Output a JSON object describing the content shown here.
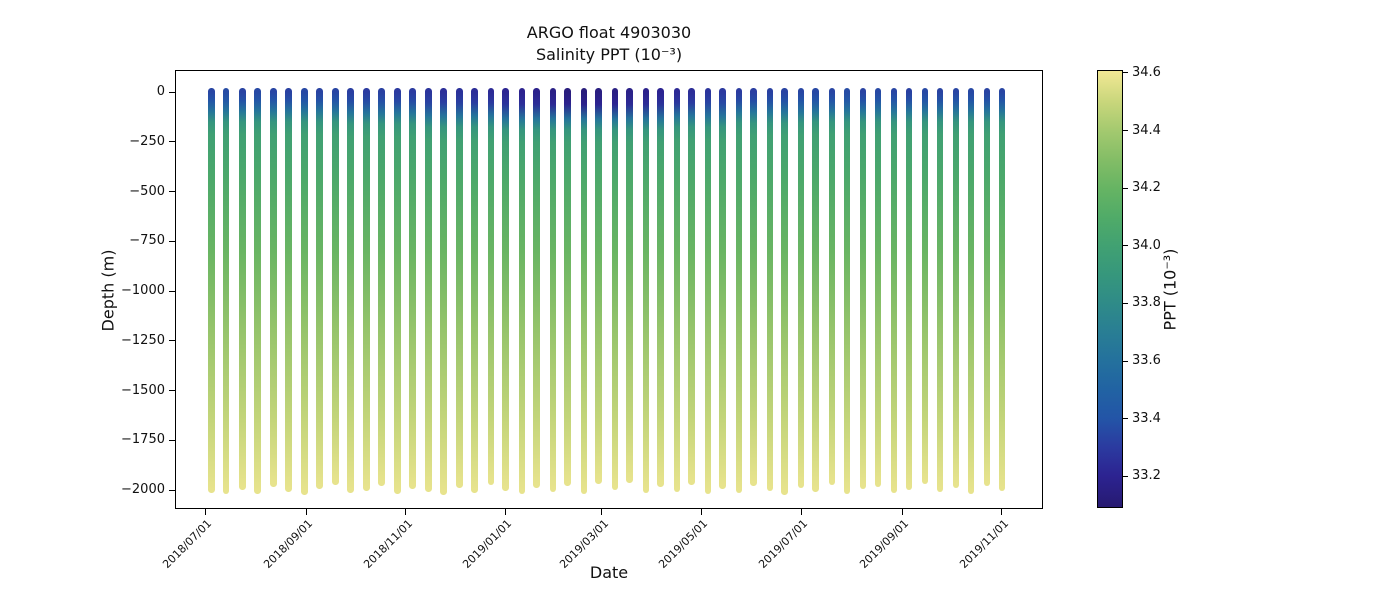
{
  "figure": {
    "title_line1": "ARGO float 4903030",
    "title_line2": "Salinity PPT (10⁻³)",
    "xlabel": "Date",
    "ylabel": "Depth (m)",
    "colorbar_label": "PPT (10⁻³)"
  },
  "chart_data": {
    "type": "scatter",
    "title": "ARGO float 4903030",
    "subtitle": "Salinity PPT (10⁻³)",
    "xlabel": "Date",
    "ylabel": "Depth (m)",
    "grid": false,
    "x_tick_labels": [
      "2018/07/01",
      "2018/09/01",
      "2018/11/01",
      "2019/01/01",
      "2019/03/01",
      "2019/05/01",
      "2019/07/01",
      "2019/09/01",
      "2019/11/01"
    ],
    "y_tick_labels": [
      "0",
      "−250",
      "−500",
      "−750",
      "−1000",
      "−1250",
      "−1500",
      "−1750",
      "−2000"
    ],
    "y_tick_values": [
      0,
      -250,
      -500,
      -750,
      -1000,
      -1250,
      -1500,
      -1750,
      -2000
    ],
    "ylim": [
      110,
      -2095
    ],
    "colorbar": {
      "label": "PPT (10⁻³)",
      "vmin": 33.09,
      "vmax": 34.61,
      "tick_values": [
        34.6,
        34.4,
        34.2,
        34.0,
        33.8,
        33.6,
        33.4,
        33.2
      ],
      "colormap_stops": [
        {
          "v": 33.09,
          "c": "#271a71"
        },
        {
          "v": 33.2,
          "c": "#2c2391"
        },
        {
          "v": 33.3,
          "c": "#2b3ba0"
        },
        {
          "v": 33.4,
          "c": "#2355a7"
        },
        {
          "v": 33.5,
          "c": "#2163a3"
        },
        {
          "v": 33.6,
          "c": "#24719d"
        },
        {
          "v": 33.7,
          "c": "#297e94"
        },
        {
          "v": 33.8,
          "c": "#2f8b88"
        },
        {
          "v": 33.9,
          "c": "#36977c"
        },
        {
          "v": 34.0,
          "c": "#41a172"
        },
        {
          "v": 34.1,
          "c": "#50ab68"
        },
        {
          "v": 34.2,
          "c": "#66b463"
        },
        {
          "v": 34.3,
          "c": "#83bd66"
        },
        {
          "v": 34.4,
          "c": "#a3c96f"
        },
        {
          "v": 34.5,
          "c": "#c8d67b"
        },
        {
          "v": 34.61,
          "c": "#f2e894"
        }
      ]
    },
    "representative_profile": {
      "depths_m": [
        0,
        -50,
        -100,
        -150,
        -300,
        -600,
        -1000,
        -1500,
        -2000
      ],
      "salinity_ppt": [
        33.3,
        33.5,
        33.7,
        33.95,
        34.05,
        34.18,
        34.32,
        34.46,
        34.58
      ]
    },
    "deep_profile_salinity": [
      [
        420,
        34.07
      ],
      [
        800,
        34.21
      ],
      [
        1200,
        34.36
      ],
      [
        1650,
        34.49
      ]
    ],
    "bottom_salinity_ppt": 34.58,
    "profile_fields": [
      "date",
      "surface_ppt",
      "mixed_layer_depth_m",
      "bottom_depth_m"
    ],
    "profiles": [
      [
        "2018/07/05",
        33.34,
        95,
        1995
      ],
      [
        "2018/07/14",
        33.36,
        95,
        2005
      ],
      [
        "2018/07/24",
        33.33,
        95,
        1980
      ],
      [
        "2018/08/02",
        33.35,
        95,
        2000
      ],
      [
        "2018/08/12",
        33.34,
        95,
        1965
      ],
      [
        "2018/08/21",
        33.32,
        95,
        1990
      ],
      [
        "2018/08/31",
        33.35,
        95,
        2008
      ],
      [
        "2018/09/09",
        33.33,
        95,
        1975
      ],
      [
        "2018/09/19",
        33.34,
        95,
        1955
      ],
      [
        "2018/09/28",
        33.31,
        105,
        1998
      ],
      [
        "2018/10/08",
        33.3,
        105,
        1985
      ],
      [
        "2018/10/17",
        33.32,
        105,
        1962
      ],
      [
        "2018/10/27",
        33.29,
        105,
        2002
      ],
      [
        "2018/11/05",
        33.3,
        105,
        1978
      ],
      [
        "2018/11/15",
        33.27,
        120,
        1992
      ],
      [
        "2018/11/24",
        33.25,
        120,
        2006
      ],
      [
        "2018/12/04",
        33.26,
        120,
        1970
      ],
      [
        "2018/12/13",
        33.24,
        120,
        1996
      ],
      [
        "2018/12/23",
        33.23,
        120,
        1958
      ],
      [
        "2019/01/01",
        33.21,
        135,
        1988
      ],
      [
        "2019/01/11",
        33.19,
        135,
        2003
      ],
      [
        "2019/01/20",
        33.18,
        135,
        1972
      ],
      [
        "2019/01/30",
        33.16,
        135,
        1993
      ],
      [
        "2019/02/08",
        33.13,
        135,
        1960
      ],
      [
        "2019/02/18",
        33.12,
        135,
        2000
      ],
      [
        "2019/02/27",
        33.14,
        135,
        1950
      ],
      [
        "2019/03/09",
        33.15,
        135,
        1982
      ],
      [
        "2019/03/18",
        33.17,
        135,
        1945
      ],
      [
        "2019/03/28",
        33.18,
        135,
        1998
      ],
      [
        "2019/04/06",
        33.2,
        135,
        1968
      ],
      [
        "2019/04/16",
        33.22,
        120,
        1990
      ],
      [
        "2019/04/25",
        33.24,
        120,
        1955
      ],
      [
        "2019/05/05",
        33.27,
        120,
        2005
      ],
      [
        "2019/05/14",
        33.29,
        120,
        1975
      ],
      [
        "2019/05/24",
        33.3,
        100,
        1995
      ],
      [
        "2019/06/02",
        33.31,
        100,
        1962
      ],
      [
        "2019/06/12",
        33.32,
        100,
        1985
      ],
      [
        "2019/06/21",
        33.33,
        100,
        2008
      ],
      [
        "2019/07/01",
        33.34,
        100,
        1970
      ],
      [
        "2019/07/10",
        33.35,
        95,
        1992
      ],
      [
        "2019/07/20",
        33.34,
        95,
        1957
      ],
      [
        "2019/07/29",
        33.36,
        95,
        2000
      ],
      [
        "2019/08/08",
        33.33,
        95,
        1978
      ],
      [
        "2019/08/17",
        33.35,
        95,
        1965
      ],
      [
        "2019/08/27",
        33.34,
        95,
        1996
      ],
      [
        "2019/09/05",
        33.32,
        95,
        1983
      ],
      [
        "2019/09/15",
        33.35,
        95,
        1952
      ],
      [
        "2019/09/24",
        33.33,
        95,
        1990
      ],
      [
        "2019/10/04",
        33.34,
        95,
        1972
      ],
      [
        "2019/10/13",
        33.35,
        95,
        2002
      ],
      [
        "2019/10/23",
        33.33,
        95,
        1960
      ],
      [
        "2019/11/01",
        33.34,
        95,
        1988
      ]
    ]
  }
}
